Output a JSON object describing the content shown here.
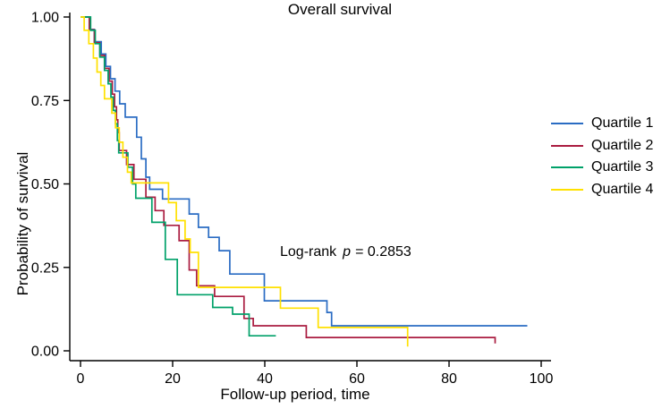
{
  "figure": {
    "title": "Overall survival",
    "annotation": {
      "prefix": "Log-rank",
      "stat_symbol": "p",
      "value": "= 0.2853"
    }
  },
  "chart_data": {
    "type": "line",
    "subtype": "kaplan_meier_step_curves",
    "title": "Overall survival",
    "xlabel": "Follow-up period, time",
    "ylabel": "Probability of survival",
    "xlim": [
      0,
      100
    ],
    "ylim": [
      0.0,
      1.0
    ],
    "grid": false,
    "legend_position": "right-outside",
    "annotation_text": "Log-rank p = 0.2853",
    "p_value": 0.2853,
    "x_ticks": [
      {
        "value": 0,
        "label": "0"
      },
      {
        "value": 20,
        "label": "20"
      },
      {
        "value": 40,
        "label": "40"
      },
      {
        "value": 60,
        "label": "60"
      },
      {
        "value": 80,
        "label": "80"
      },
      {
        "value": 100,
        "label": "100"
      }
    ],
    "y_ticks": [
      {
        "value": 1.0,
        "label": "1.00"
      },
      {
        "value": 0.75,
        "label": "0.75"
      },
      {
        "value": 0.5,
        "label": "0.50"
      },
      {
        "value": 0.25,
        "label": "0.25"
      },
      {
        "value": 0.0,
        "label": "0.00"
      }
    ],
    "series": [
      {
        "name": "Quartile 1",
        "color": "#2a6cc3",
        "points": [
          [
            0,
            1.0
          ],
          [
            2,
            0.963
          ],
          [
            3,
            0.926
          ],
          [
            4.5,
            0.889
          ],
          [
            5.5,
            0.852
          ],
          [
            6.5,
            0.815
          ],
          [
            7.5,
            0.778
          ],
          [
            8.5,
            0.74
          ],
          [
            9.7,
            0.7
          ],
          [
            12.2,
            0.64
          ],
          [
            13.2,
            0.575
          ],
          [
            14.2,
            0.52
          ],
          [
            15,
            0.484
          ],
          [
            17.8,
            0.455
          ],
          [
            23.6,
            0.41
          ],
          [
            25.6,
            0.37
          ],
          [
            27.8,
            0.34
          ],
          [
            30.1,
            0.3
          ],
          [
            32.4,
            0.23
          ],
          [
            39.9,
            0.15
          ],
          [
            53.5,
            0.115
          ],
          [
            54.5,
            0.075
          ],
          [
            97,
            0.075
          ]
        ]
      },
      {
        "name": "Quartile 2",
        "color": "#aa1c40",
        "points": [
          [
            0,
            1.0
          ],
          [
            1.9,
            0.962
          ],
          [
            3,
            0.923
          ],
          [
            4.2,
            0.885
          ],
          [
            5.2,
            0.846
          ],
          [
            6.2,
            0.808
          ],
          [
            6.9,
            0.769
          ],
          [
            7.4,
            0.731
          ],
          [
            7.8,
            0.692
          ],
          [
            8.1,
            0.654
          ],
          [
            8.4,
            0.6
          ],
          [
            10,
            0.558
          ],
          [
            11.6,
            0.514
          ],
          [
            14.2,
            0.46
          ],
          [
            16.2,
            0.42
          ],
          [
            18.1,
            0.376
          ],
          [
            21.4,
            0.33
          ],
          [
            23.6,
            0.242
          ],
          [
            25.2,
            0.195
          ],
          [
            29.1,
            0.163
          ],
          [
            35.5,
            0.097
          ],
          [
            37.5,
            0.075
          ],
          [
            49,
            0.04
          ],
          [
            90,
            0.022
          ]
        ]
      },
      {
        "name": "Quartile 3",
        "color": "#00a169",
        "points": [
          [
            0,
            1.0
          ],
          [
            2.2,
            0.96
          ],
          [
            3.2,
            0.92
          ],
          [
            4.2,
            0.88
          ],
          [
            5.2,
            0.84
          ],
          [
            6,
            0.8
          ],
          [
            6.6,
            0.76
          ],
          [
            7.1,
            0.72
          ],
          [
            7.6,
            0.68
          ],
          [
            8,
            0.63
          ],
          [
            8.3,
            0.593
          ],
          [
            10.3,
            0.55
          ],
          [
            11.3,
            0.5
          ],
          [
            12,
            0.457
          ],
          [
            15.5,
            0.385
          ],
          [
            18.4,
            0.274
          ],
          [
            21,
            0.168
          ],
          [
            28.7,
            0.13
          ],
          [
            33,
            0.11
          ],
          [
            36.6,
            0.045
          ],
          [
            42.4,
            0.045
          ]
        ]
      },
      {
        "name": "Quartile 4",
        "color": "#ffe100",
        "points": [
          [
            0,
            1.0
          ],
          [
            0.8,
            0.96
          ],
          [
            1.8,
            0.92
          ],
          [
            2.8,
            0.877
          ],
          [
            3.6,
            0.835
          ],
          [
            4.4,
            0.795
          ],
          [
            5.2,
            0.755
          ],
          [
            6.8,
            0.712
          ],
          [
            7.6,
            0.668
          ],
          [
            8.4,
            0.625
          ],
          [
            9.2,
            0.58
          ],
          [
            10.2,
            0.535
          ],
          [
            11,
            0.503
          ],
          [
            19.1,
            0.444
          ],
          [
            20.8,
            0.39
          ],
          [
            22.7,
            0.335
          ],
          [
            23.8,
            0.295
          ],
          [
            25.6,
            0.19
          ],
          [
            43.4,
            0.128
          ],
          [
            51.6,
            0.07
          ],
          [
            71,
            0.013
          ]
        ]
      }
    ]
  }
}
